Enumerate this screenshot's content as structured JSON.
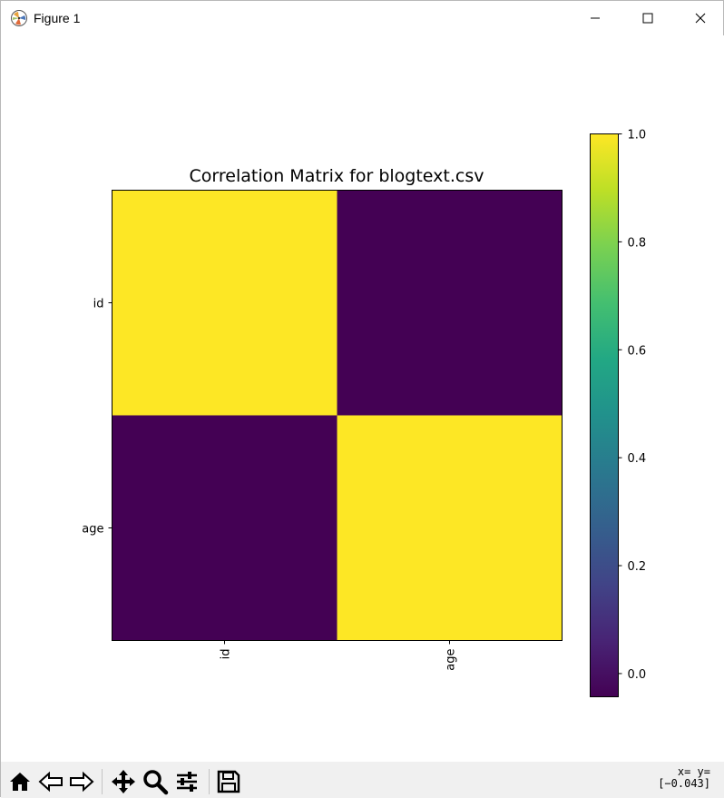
{
  "window": {
    "title": "Figure 1"
  },
  "chart_data": {
    "type": "heatmap",
    "title": "Correlation Matrix for blogtext.csv",
    "row_labels": [
      "id",
      "age"
    ],
    "col_labels": [
      "id",
      "age"
    ],
    "values": [
      [
        1.0,
        -0.043
      ],
      [
        -0.043,
        1.0
      ]
    ],
    "colormap": "viridis",
    "colorbar": {
      "range": [
        -0.043,
        1.0
      ],
      "ticks": [
        0.0,
        0.2,
        0.4,
        0.6,
        0.8,
        1.0
      ],
      "tick_labels": [
        "0.0",
        "0.2",
        "0.4",
        "0.6",
        "0.8",
        "1.0"
      ]
    }
  },
  "toolbar": {
    "coord_line1": "x= y=",
    "coord_line2": "[−0.043]",
    "tools": [
      "home-icon",
      "back-icon",
      "forward-icon",
      "pan-icon",
      "zoom-icon",
      "configure-subplots-icon",
      "save-icon"
    ]
  }
}
